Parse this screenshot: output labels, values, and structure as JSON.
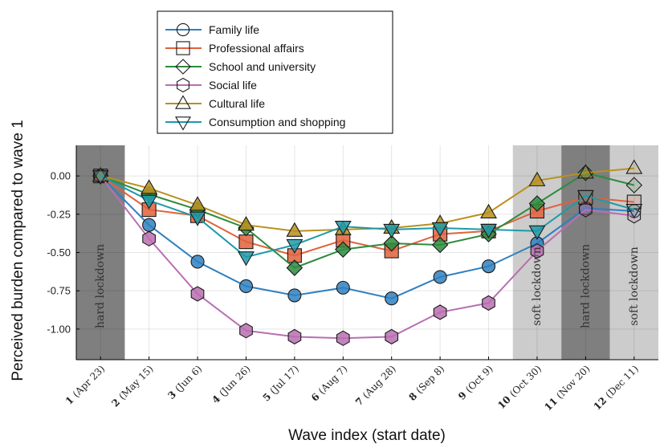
{
  "chart_data": {
    "type": "line",
    "xlabel": "Wave index (start date)",
    "ylabel": "Perceived burden compared to wave 1",
    "xlim": [
      0.5,
      12.5
    ],
    "ylim": [
      -1.2,
      0.2
    ],
    "y_ticks": [
      0.0,
      -0.25,
      -0.5,
      -0.75,
      -1.0
    ],
    "y_tick_labels": [
      "0.00",
      "-0.25",
      "-0.50",
      "-0.75",
      "-1.00"
    ],
    "grid": true,
    "legend_position": "top-left, above plot",
    "categories": [
      {
        "x": 1,
        "index": "1",
        "date": "(Apr 23)"
      },
      {
        "x": 2,
        "index": "2",
        "date": "(May 15)"
      },
      {
        "x": 3,
        "index": "3",
        "date": "(Jun 6)"
      },
      {
        "x": 4,
        "index": "4",
        "date": "(Jun 26)"
      },
      {
        "x": 5,
        "index": "5",
        "date": "(Jul 17)"
      },
      {
        "x": 6,
        "index": "6",
        "date": "(Aug 7)"
      },
      {
        "x": 7,
        "index": "7",
        "date": "(Aug 28)"
      },
      {
        "x": 8,
        "index": "8",
        "date": "(Sep 8)"
      },
      {
        "x": 9,
        "index": "9",
        "date": "(Oct 9)"
      },
      {
        "x": 10,
        "index": "10",
        "date": "(Oct 30)"
      },
      {
        "x": 11,
        "index": "11",
        "date": "(Nov 20)"
      },
      {
        "x": 12,
        "index": "12",
        "date": "(Dec 11)"
      }
    ],
    "bands": [
      {
        "label": "hard lockdown",
        "x0": 0.5,
        "x1": 1.5,
        "color": "#7f7f7f"
      },
      {
        "label": "soft lockdown",
        "x0": 9.5,
        "x1": 10.5,
        "color": "#cccccc"
      },
      {
        "label": "hard lockdown",
        "x0": 10.5,
        "x1": 11.5,
        "color": "#7f7f7f"
      },
      {
        "label": "soft lockdown",
        "x0": 11.5,
        "x1": 12.5,
        "color": "#cccccc"
      }
    ],
    "series": [
      {
        "name": "Family life",
        "color": "#2f80c0",
        "marker": "circle",
        "values": [
          0,
          -0.32,
          -0.56,
          -0.72,
          -0.78,
          -0.73,
          -0.8,
          -0.66,
          -0.59,
          -0.44,
          -0.21,
          -0.23
        ]
      },
      {
        "name": "Professional affairs",
        "color": "#e0623c",
        "marker": "square",
        "values": [
          0,
          -0.22,
          -0.26,
          -0.43,
          -0.52,
          -0.42,
          -0.49,
          -0.38,
          -0.36,
          -0.23,
          -0.14,
          -0.17
        ]
      },
      {
        "name": "School and university",
        "color": "#2e8b3e",
        "marker": "diamond",
        "values": [
          0,
          -0.12,
          -0.22,
          -0.34,
          -0.6,
          -0.48,
          -0.44,
          -0.45,
          -0.38,
          -0.18,
          0.02,
          -0.06
        ]
      },
      {
        "name": "Social life",
        "color": "#b86fb0",
        "marker": "hexagon",
        "values": [
          0,
          -0.41,
          -0.77,
          -1.01,
          -1.05,
          -1.06,
          -1.05,
          -0.89,
          -0.83,
          -0.49,
          -0.22,
          -0.26
        ]
      },
      {
        "name": "Cultural life",
        "color": "#b8911e",
        "marker": "triangle-up",
        "values": [
          0,
          -0.08,
          -0.19,
          -0.32,
          -0.36,
          -0.35,
          -0.34,
          -0.31,
          -0.24,
          -0.03,
          0.02,
          0.05
        ]
      },
      {
        "name": "Consumption and shopping",
        "color": "#1f9aa8",
        "marker": "triangle-down",
        "values": [
          0,
          -0.16,
          -0.27,
          -0.53,
          -0.45,
          -0.33,
          -0.35,
          -0.34,
          -0.35,
          -0.36,
          -0.13,
          -0.22
        ]
      }
    ]
  }
}
